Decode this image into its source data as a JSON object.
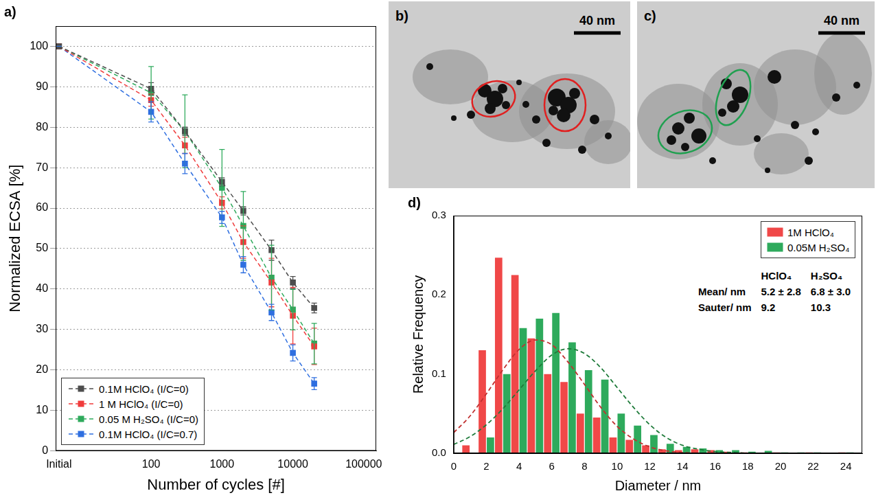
{
  "chart_data": [
    {
      "type": "line",
      "title": "a)",
      "x_label": "Number of cycles [#]",
      "y_label": "Normalized ECSA [%]",
      "log": "x",
      "grid": true,
      "legend": "bottom-left",
      "marker": "square",
      "line_style": "dashed",
      "x": [
        5,
        100,
        300,
        1000,
        2000,
        5000,
        10000,
        20000
      ],
      "xlim": [
        4.5,
        150000
      ],
      "xticks": [
        {
          "value": 5,
          "label": "Initial"
        },
        100,
        1000,
        10000,
        100000
      ],
      "ylim": [
        0,
        105
      ],
      "yticks": [
        0,
        10,
        20,
        30,
        40,
        50,
        60,
        70,
        80,
        90,
        100
      ],
      "series": [
        {
          "name": "0.1M HClO₄ (I/C=0)",
          "color": "#4d4d4d",
          "values": [
            100,
            89.5,
            79,
            66.5,
            59.3,
            49.6,
            41.6,
            35.3
          ],
          "errors": [
            0,
            1.5,
            1,
            1,
            1,
            2.5,
            1.5,
            1.2
          ]
        },
        {
          "name": "1 M HClO₄ (I/C=0)",
          "color": "#f03c3c",
          "values": [
            100,
            86.7,
            75.5,
            61.3,
            51.6,
            41.6,
            33.4,
            25.8
          ],
          "errors": [
            0,
            1.5,
            2,
            1.5,
            4,
            6,
            7,
            4.5
          ]
        },
        {
          "name": "0.05 M H₂SO₄ (I/C=0)",
          "color": "#2eaa5c",
          "values": [
            100,
            88.5,
            79,
            65,
            55.6,
            42.8,
            34.9,
            26.5
          ],
          "errors": [
            0,
            6.5,
            9,
            9.5,
            8.5,
            8,
            5,
            5
          ]
        },
        {
          "name": "0.1M HClO₄ (I/C=0.7)",
          "color": "#2f6fe0",
          "values": [
            100,
            83.8,
            71,
            57.7,
            46,
            34.2,
            24.2,
            16.6
          ],
          "errors": [
            0,
            2.5,
            2.5,
            1.5,
            2,
            2,
            2,
            1.5
          ]
        }
      ]
    },
    {
      "type": "bar",
      "title": "d)",
      "x_label": "Diameter / nm",
      "y_label": "Relative Frequency",
      "grid": false,
      "legend": "top-right",
      "xlim": [
        0,
        25
      ],
      "xticks": [
        0,
        2,
        4,
        6,
        8,
        10,
        12,
        14,
        16,
        18,
        20,
        22,
        24
      ],
      "ylim": [
        0,
        0.3
      ],
      "yticks": [
        {
          "value": 0,
          "label": "0.0"
        },
        0.1,
        0.2,
        0.3
      ],
      "series": [
        {
          "name": "1M HClO₄",
          "type": "bar",
          "color": "#f04848",
          "x": [
            1,
            2,
            3,
            4,
            5,
            6,
            7,
            8,
            9,
            10,
            11,
            12,
            13,
            14,
            15,
            16,
            17,
            18,
            19,
            20,
            21,
            22,
            23,
            24
          ],
          "values": [
            0.01,
            0.13,
            0.247,
            0.225,
            0.145,
            0.1,
            0.09,
            0.05,
            0.045,
            0.02,
            0.017,
            0.01,
            0.005,
            0.004,
            0.005,
            0.004,
            0.002,
            0.001,
            0,
            0.001,
            0,
            0.001,
            0,
            0.001
          ]
        },
        {
          "name": "0.05M H₂SO₄",
          "type": "bar",
          "color": "#2eaa5c",
          "x": [
            1,
            2,
            3,
            4,
            5,
            6,
            7,
            8,
            9,
            10,
            11,
            12,
            13,
            14,
            15,
            16,
            17,
            18,
            19,
            20,
            21,
            22,
            23,
            24
          ],
          "values": [
            0,
            0.02,
            0.1,
            0.158,
            0.17,
            0.177,
            0.14,
            0.105,
            0.093,
            0.05,
            0.035,
            0.023,
            0.012,
            0.008,
            0.006,
            0.004,
            0.004,
            0.002,
            0.003,
            0.001,
            0.001,
            0.001,
            0,
            0.001
          ]
        },
        {
          "type": "line",
          "color": "#c03030",
          "line_style": "dashed",
          "x": [
            0,
            1,
            2,
            3,
            4,
            5,
            6,
            7,
            8,
            9,
            10,
            11,
            12,
            13,
            14,
            15,
            16,
            17,
            18
          ],
          "values": [
            0.026,
            0.047,
            0.075,
            0.105,
            0.131,
            0.143,
            0.137,
            0.115,
            0.087,
            0.058,
            0.034,
            0.018,
            0.008,
            0.003,
            0.001,
            0,
            0,
            0,
            0
          ]
        },
        {
          "type": "line",
          "color": "#1e7b3a",
          "line_style": "dashed",
          "x": [
            0,
            1,
            2,
            3,
            4,
            5,
            6,
            7,
            8,
            9,
            10,
            11,
            12,
            13,
            14,
            15,
            16,
            17,
            18
          ],
          "values": [
            0.011,
            0.021,
            0.036,
            0.056,
            0.08,
            0.104,
            0.124,
            0.132,
            0.126,
            0.108,
            0.083,
            0.058,
            0.036,
            0.02,
            0.01,
            0.005,
            0.002,
            0.001,
            0
          ]
        }
      ],
      "table": {
        "columns": [
          "HClO₄",
          "H₂SO₄"
        ],
        "rows": [
          [
            "Mean/ nm",
            "5.2 ± 2.8",
            "6.8 ± 3.0"
          ],
          [
            "Sauter/ nm",
            "9.2",
            "10.3"
          ]
        ]
      }
    }
  ],
  "images": [
    {
      "label": "b)",
      "scale_bar": "40 nm"
    },
    {
      "label": "c)",
      "scale_bar": "40 nm"
    }
  ]
}
